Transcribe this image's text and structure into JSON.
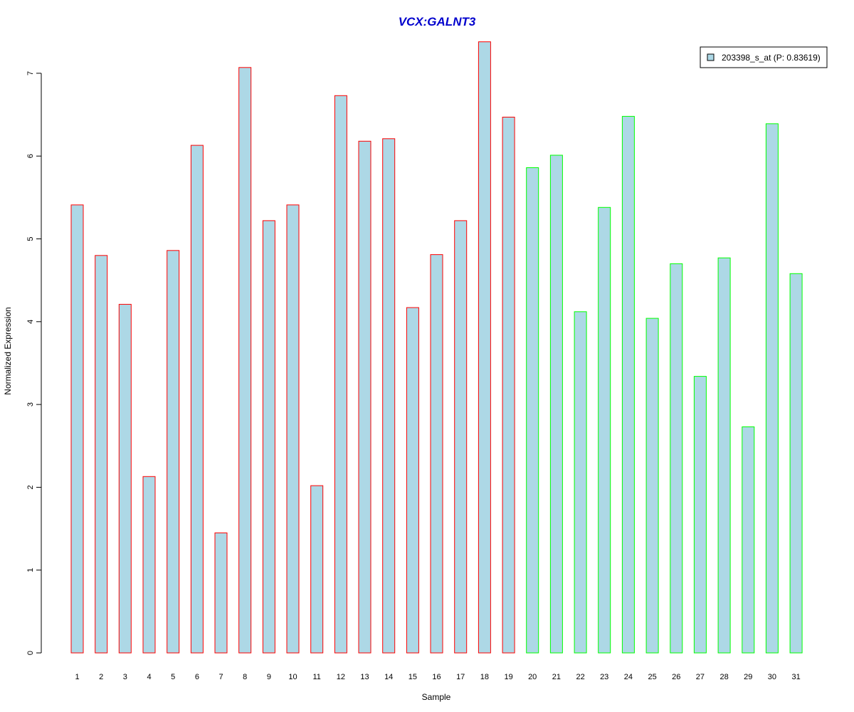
{
  "chart_data": {
    "type": "bar",
    "title": "VCX:GALNT3",
    "xlabel": "Sample",
    "ylabel": "Normalized Expression",
    "ylim": [
      0,
      7.4
    ],
    "yticks": [
      0,
      1,
      2,
      3,
      4,
      5,
      6,
      7
    ],
    "categories": [
      "1",
      "2",
      "3",
      "4",
      "5",
      "6",
      "7",
      "8",
      "9",
      "10",
      "11",
      "12",
      "13",
      "14",
      "15",
      "16",
      "17",
      "18",
      "19",
      "20",
      "21",
      "22",
      "23",
      "24",
      "25",
      "26",
      "27",
      "28",
      "29",
      "30",
      "31"
    ],
    "values": [
      5.41,
      4.8,
      4.21,
      2.13,
      4.86,
      6.13,
      1.45,
      7.07,
      5.22,
      5.41,
      2.02,
      6.73,
      6.18,
      6.21,
      4.17,
      4.81,
      5.22,
      7.38,
      6.47,
      5.86,
      6.01,
      4.12,
      5.38,
      6.48,
      4.04,
      4.7,
      3.34,
      4.77,
      2.73,
      6.39,
      4.58
    ],
    "groups": [
      "red",
      "red",
      "red",
      "red",
      "red",
      "red",
      "red",
      "red",
      "red",
      "red",
      "red",
      "red",
      "red",
      "red",
      "red",
      "red",
      "red",
      "red",
      "red",
      "green",
      "green",
      "green",
      "green",
      "green",
      "green",
      "green",
      "green",
      "green",
      "green",
      "green",
      "green"
    ],
    "legend": {
      "entries": [
        "203398_s_at (P: 0.83619)"
      ],
      "placement": "top-right"
    },
    "grid": false,
    "colors": {
      "bar_fill": "#add8e6",
      "border_red": "#ff0000",
      "border_green": "#00ff00",
      "title": "#0000cd",
      "axis": "#000000"
    }
  }
}
